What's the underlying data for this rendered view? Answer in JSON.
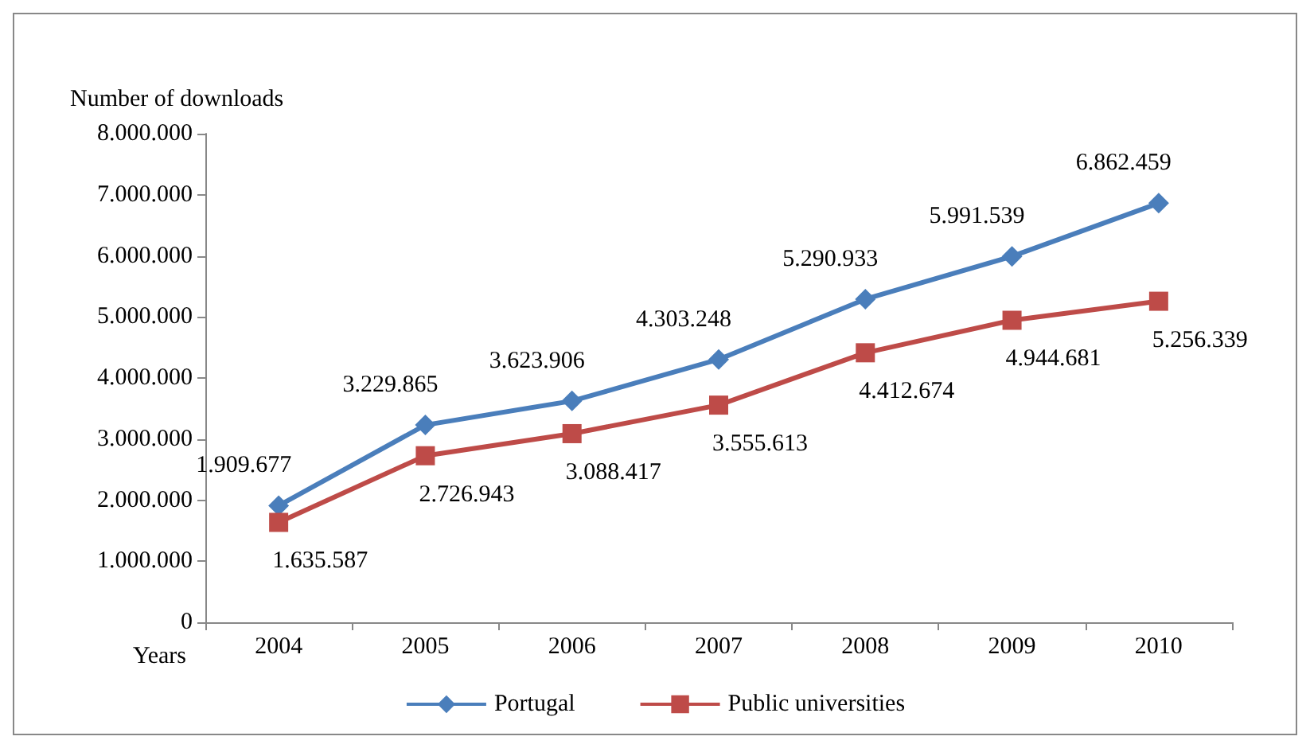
{
  "chart_data": {
    "type": "line",
    "xlabel": "Years",
    "ylabel": "Number of downloads",
    "categories": [
      "2004",
      "2005",
      "2006",
      "2007",
      "2008",
      "2009",
      "2010"
    ],
    "series": [
      {
        "name": "Portugal",
        "color": "#4a7ebb",
        "marker": "diamond",
        "values": [
          1909677,
          3229865,
          3623906,
          4303248,
          5290933,
          5991539,
          6862459
        ],
        "value_labels": [
          "1.909.677",
          "3.229.865",
          "3.623.906",
          "4.303.248",
          "5.290.933",
          "5.991.539",
          "6.862.459"
        ]
      },
      {
        "name": "Public universities",
        "color": "#be4b48",
        "marker": "square",
        "values": [
          1635587,
          2726943,
          3088417,
          3555613,
          4412674,
          4944681,
          5256339
        ],
        "value_labels": [
          "1.635.587",
          "2.726.943",
          "3.088.417",
          "3.555.613",
          "4.412.674",
          "4.944.681",
          "5.256.339"
        ]
      }
    ],
    "ylim": [
      0,
      8000000
    ],
    "yticks": [
      {
        "value": 0,
        "label": "0"
      },
      {
        "value": 1000000,
        "label": "1.000.000"
      },
      {
        "value": 2000000,
        "label": "2.000.000"
      },
      {
        "value": 3000000,
        "label": "3.000.000"
      },
      {
        "value": 4000000,
        "label": "4.000.000"
      },
      {
        "value": 5000000,
        "label": "5.000.000"
      },
      {
        "value": 6000000,
        "label": "6.000.000"
      },
      {
        "value": 7000000,
        "label": "7.000.000"
      },
      {
        "value": 8000000,
        "label": "8.000.000"
      }
    ],
    "grid": false,
    "legend": "bottom",
    "line_style": "solid"
  }
}
